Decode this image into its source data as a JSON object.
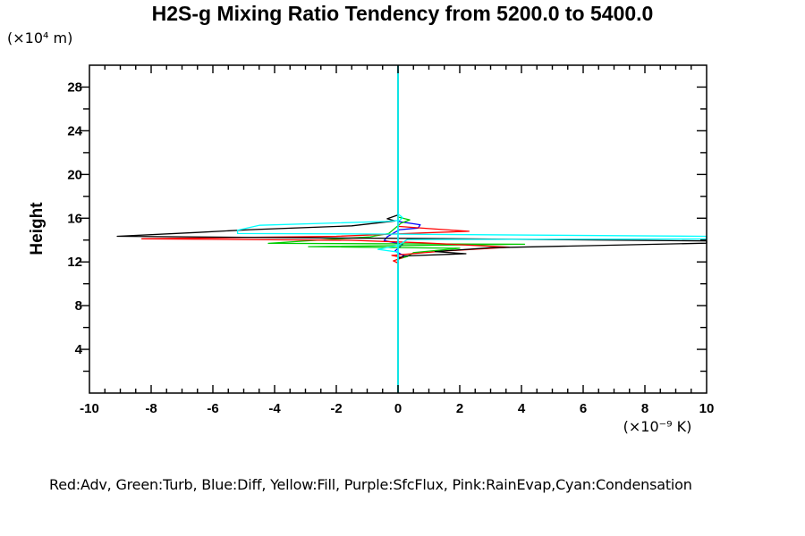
{
  "title": "H2S-g Mixing Ratio Tendency from 5200.0 to 5400.0",
  "legend": {
    "text": "Red:Adv, Green:Turb, Blue:Diff, Yellow:Fill, Purple:SfcFlux, Pink:RainEvap,Cyan:Condensation"
  },
  "chart_data": {
    "type": "line",
    "title": "H2S-g Mixing Ratio Tendency from 5200.0 to 5400.0",
    "orientation": "vertical-profile: x = tendency value, y = height",
    "xlabel_unit": "(×10⁻⁹ K)",
    "ylabel": "Height",
    "ylabel_unit": "(×10⁴ m)",
    "xlim": [
      -10,
      10
    ],
    "ylim": [
      0,
      30
    ],
    "x_major_ticks": [
      -10,
      -8,
      -6,
      -4,
      -2,
      0,
      2,
      4,
      6,
      8,
      10
    ],
    "x_minor_step": 0.5,
    "y_major_ticks": [
      4,
      8,
      12,
      16,
      20,
      24,
      28
    ],
    "y_minor_step": 2,
    "grid": false,
    "legend_position": "bottom-text-line",
    "zero_line": {
      "x": 0,
      "color": "#00ffff"
    },
    "draw_order": [
      "Fill",
      "SfcFlux",
      "RainEvap",
      "Diff",
      "Turb",
      "Adv",
      "Net(black,unlabeled)",
      "Condensation"
    ],
    "series": [
      {
        "name": "Fill",
        "color": "#ffff00",
        "points": [
          [
            0,
            30
          ],
          [
            0,
            0
          ]
        ]
      },
      {
        "name": "SfcFlux",
        "color": "#a020f0",
        "points": [
          [
            0,
            30
          ],
          [
            0,
            0
          ]
        ]
      },
      {
        "name": "RainEvap",
        "color": "#ff69b4",
        "points": [
          [
            0,
            30
          ],
          [
            0,
            0
          ]
        ]
      },
      {
        "name": "Diff",
        "color": "#0000ff",
        "points": [
          [
            0,
            30
          ],
          [
            0,
            15.7
          ],
          [
            0.72,
            15.4
          ],
          [
            0.65,
            15.1
          ],
          [
            0.05,
            14.95
          ],
          [
            -0.35,
            14.3
          ],
          [
            -0.45,
            13.95
          ],
          [
            0.15,
            13.6
          ],
          [
            -0.1,
            13.0
          ],
          [
            0.2,
            12.55
          ],
          [
            0,
            12.25
          ],
          [
            0,
            0
          ]
        ]
      },
      {
        "name": "Turb",
        "color": "#00cc00",
        "points": [
          [
            0,
            30
          ],
          [
            0,
            16.1
          ],
          [
            0.38,
            15.85
          ],
          [
            0.1,
            15.55
          ],
          [
            -0.3,
            14.6
          ],
          [
            -0.9,
            14.3
          ],
          [
            -4.2,
            13.7
          ],
          [
            4.1,
            13.62
          ],
          [
            -2.9,
            13.4
          ],
          [
            2.0,
            13.25
          ],
          [
            0.5,
            12.85
          ],
          [
            0.3,
            12.5
          ],
          [
            0,
            12.25
          ],
          [
            0,
            0
          ]
        ]
      },
      {
        "name": "Adv",
        "color": "#ff0000",
        "points": [
          [
            0,
            30
          ],
          [
            0,
            15.25
          ],
          [
            1,
            15.05
          ],
          [
            2.3,
            14.8
          ],
          [
            0.3,
            14.6
          ],
          [
            -2,
            14.35
          ],
          [
            -8.3,
            14.12
          ],
          [
            -1.5,
            13.98
          ],
          [
            0.8,
            13.75
          ],
          [
            3.6,
            13.35
          ],
          [
            1.5,
            13.0
          ],
          [
            -0.2,
            12.6
          ],
          [
            0.15,
            12.4
          ],
          [
            -0.15,
            12.1
          ],
          [
            0,
            11.9
          ],
          [
            0,
            0
          ]
        ]
      },
      {
        "name": "Net(black,unlabeled)",
        "color": "#000000",
        "points": [
          [
            0,
            30
          ],
          [
            0,
            16.3
          ],
          [
            -0.35,
            15.95
          ],
          [
            -0.1,
            15.75
          ],
          [
            -1.5,
            15.3
          ],
          [
            -4.8,
            14.95
          ],
          [
            -6.5,
            14.7
          ],
          [
            -9.1,
            14.35
          ],
          [
            -2.5,
            14.2
          ],
          [
            0.5,
            14.15
          ],
          [
            10,
            13.92
          ],
          [
            10,
            13.72
          ],
          [
            3,
            13.3
          ],
          [
            1.2,
            12.95
          ],
          [
            2.2,
            12.75
          ],
          [
            0.2,
            12.55
          ],
          [
            0,
            12.3
          ],
          [
            0,
            0
          ]
        ]
      },
      {
        "name": "Condensation",
        "color": "#00ffff",
        "points": [
          [
            0,
            30
          ],
          [
            0,
            16.4
          ],
          [
            0.15,
            16.05
          ],
          [
            0.05,
            15.8
          ],
          [
            -0.4,
            15.7
          ],
          [
            -4.5,
            15.35
          ],
          [
            -5.2,
            14.9
          ],
          [
            -5.2,
            14.6
          ],
          [
            -0.5,
            14.55
          ],
          [
            10,
            14.35
          ],
          [
            10,
            14.1
          ],
          [
            0.3,
            14.05
          ],
          [
            0,
            13.5
          ],
          [
            -0.65,
            13.15
          ],
          [
            0,
            12.9
          ],
          [
            0,
            0
          ]
        ]
      }
    ]
  }
}
